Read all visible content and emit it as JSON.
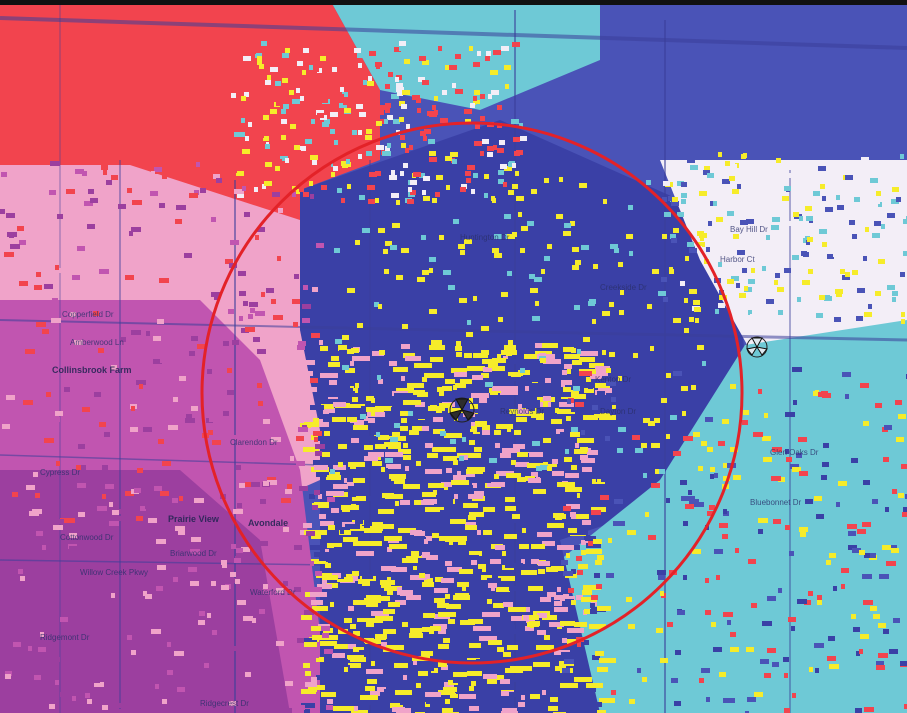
{
  "map": {
    "zone_colors": {
      "red": "#f2444e",
      "pink": "#f0a3c9",
      "magenta": "#c155b0",
      "purple": "#9c3f9f",
      "blue": "#4a53b7",
      "navy": "#3a40a6",
      "cyan": "#6ec9d6",
      "white": "#f3eef7",
      "yellow": "#f6ec2a",
      "circle": "#e32228"
    },
    "icons": [
      "antenna-site-icon",
      "antenna-site-icon"
    ],
    "labels": {
      "place_1": "Collinsbrook Farm",
      "place_2": "Prairie View",
      "place_3": "Avondale",
      "street_1": "Copperfield Dr",
      "street_2": "Clarendon Dr",
      "street_3": "Reynolds Dr",
      "street_4": "Kenton Dr",
      "street_5": "Dayton Dr",
      "street_6": "Huntington Dr",
      "street_7": "Cypress Dr",
      "street_8": "Bay Hill Dr",
      "street_9": "Harbor Ct",
      "street_10": "Glen Oaks Dr",
      "street_11": "Ridgecrest Dr",
      "street_12": "Cottonwood Dr",
      "street_13": "Willow Creek Pkwy",
      "street_14": "Waterford Dr",
      "street_15": "Bluebonnet Dr",
      "street_16": "Ridgemont Dr",
      "street_17": "Creekside Dr",
      "street_18": "Amberwood Ln",
      "street_19": "Briarwood Dr"
    }
  }
}
